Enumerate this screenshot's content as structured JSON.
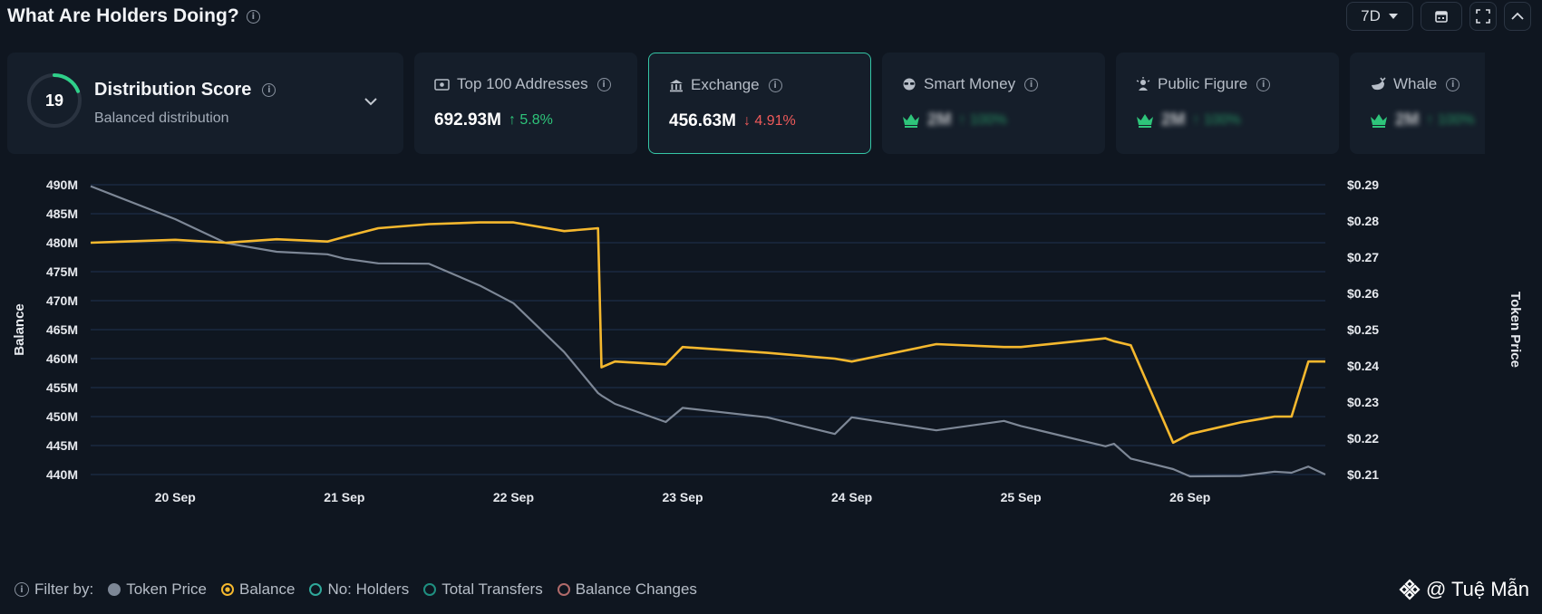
{
  "header": {
    "title": "What Are Holders Doing?",
    "range": "7D"
  },
  "score": {
    "value": "19",
    "title": "Distribution Score",
    "subtitle": "Balanced distribution"
  },
  "metrics": [
    {
      "label": "Top 100 Addresses",
      "value": "692.93M",
      "change": "5.8%",
      "direction": "up"
    },
    {
      "label": "Exchange",
      "value": "456.63M",
      "change": "4.91%",
      "direction": "down"
    },
    {
      "label": "Smart Money",
      "value": "2M",
      "change": "100%",
      "direction": "up"
    },
    {
      "label": "Public Figure",
      "value": "2M",
      "change": "100%",
      "direction": "up"
    },
    {
      "label": "Whale",
      "value": "2M",
      "change": "100%",
      "direction": "up"
    }
  ],
  "legend": {
    "prefix": "Filter by:",
    "items": [
      {
        "label": "Token Price",
        "color": "#7d8796"
      },
      {
        "label": "Balance",
        "color": "#f5b82e"
      },
      {
        "label": "No: Holders",
        "color": "#2fa89a"
      },
      {
        "label": "Total Transfers",
        "color": "#1f8f80"
      },
      {
        "label": "Balance Changes",
        "color": "#b06a6a"
      }
    ]
  },
  "watermark": "@ Tuệ Mẫn",
  "colors": {
    "balance": "#f5b82e",
    "price": "#7d8796",
    "accent": "#35c6a6"
  },
  "chart_data": {
    "type": "line",
    "ylabel": "Balance",
    "y2label": "Token Price",
    "ylim": [
      440,
      490
    ],
    "y2lim": [
      0.21,
      0.29
    ],
    "yticks": [
      "490M",
      "485M",
      "480M",
      "475M",
      "470M",
      "465M",
      "460M",
      "455M",
      "450M",
      "445M",
      "440M"
    ],
    "y2ticks": [
      "$0.29",
      "$0.28",
      "$0.27",
      "$0.26",
      "$0.25",
      "$0.24",
      "$0.23",
      "$0.22",
      "$0.21"
    ],
    "xticks": [
      "20 Sep",
      "21 Sep",
      "22 Sep",
      "23 Sep",
      "24 Sep",
      "25 Sep",
      "26 Sep"
    ],
    "x": [
      19.5,
      20.0,
      20.3,
      20.6,
      20.9,
      21.0,
      21.2,
      21.5,
      21.8,
      22.0,
      22.3,
      22.5,
      22.52,
      22.6,
      22.9,
      23.0,
      23.5,
      23.9,
      24.0,
      24.5,
      24.9,
      25.0,
      25.5,
      25.55,
      25.65,
      25.9,
      26.0,
      26.3,
      26.5,
      26.6,
      26.7,
      26.8
    ],
    "series": [
      {
        "name": "Balance",
        "values": [
          480,
          480.5,
          480,
          480.6,
          480.2,
          481,
          482.5,
          483.2,
          483.5,
          483.5,
          482,
          482.5,
          458.5,
          459.5,
          459,
          462,
          461,
          460,
          459.5,
          462.5,
          462,
          462,
          463.5,
          463,
          462.3,
          445.5,
          447,
          449,
          450,
          450,
          459.5,
          459.5
        ]
      },
      {
        "name": "Token Price",
        "values": [
          0.2896,
          0.2805,
          0.2739,
          0.2715,
          0.2708,
          0.2696,
          0.2683,
          0.2682,
          0.2622,
          0.2573,
          0.2438,
          0.2325,
          0.2318,
          0.2295,
          0.2245,
          0.2284,
          0.2258,
          0.2212,
          0.2258,
          0.2222,
          0.2248,
          0.2234,
          0.2178,
          0.2185,
          0.2144,
          0.2115,
          0.2095,
          0.2096,
          0.2108,
          0.2105,
          0.2122,
          0.21
        ]
      }
    ]
  }
}
